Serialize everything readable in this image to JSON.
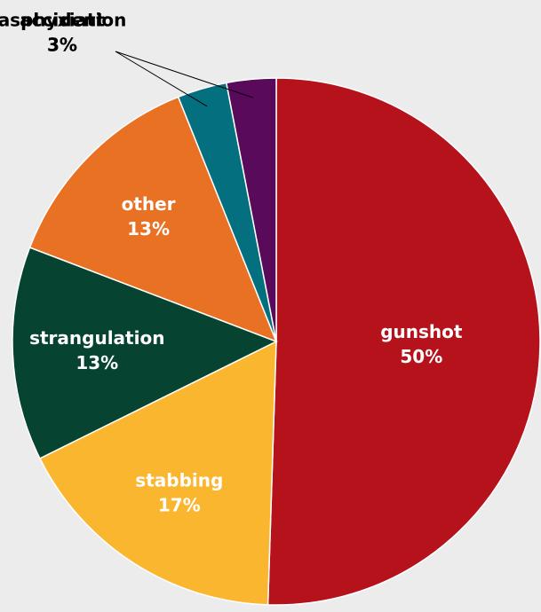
{
  "chart_data": {
    "type": "pie",
    "categories": [
      "gunshot",
      "stabbing",
      "strangulation",
      "other",
      "accident",
      "asphyxiation"
    ],
    "values": [
      50,
      17,
      13,
      13,
      3,
      3
    ],
    "value_labels": [
      "50%",
      "17%",
      "13%",
      "13%",
      "3%",
      "3%"
    ],
    "colors": [
      "#b5121b",
      "#fbb62f",
      "#064331",
      "#e87124",
      "#04707f",
      "#5a0a5a"
    ]
  }
}
